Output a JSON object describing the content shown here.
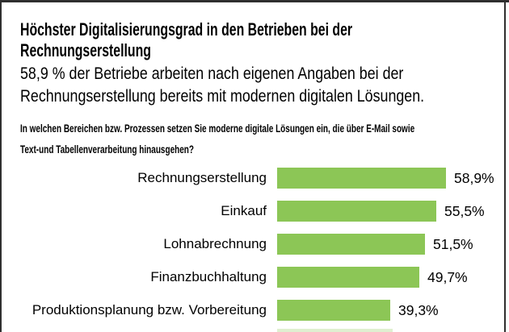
{
  "page": {
    "background": "#ffffff",
    "frame_color": "#2f2f2f"
  },
  "header": {
    "title_lines": [
      "Höchster Digitalisierungsgrad in den Betrieben bei der",
      "Rechnungserstellung"
    ],
    "subtitle_lines": [
      "58,9 % der Betriebe arbeiten nach eigenen Angaben bei der",
      "Rechnungserstellung bereits mit modernen digitalen Lösungen."
    ]
  },
  "question_lines": [
    "In welchen Bereichen bzw. Prozessen setzen Sie moderne digitale Lösungen ein, die über E-Mail sowie",
    "Text-und Tabellenverarbeitung hinausgehen?"
  ],
  "chart_data": {
    "type": "bar",
    "orientation": "horizontal",
    "title": "Höchster Digitalisierungsgrad in den Betrieben bei der Rechnungserstellung",
    "subtitle": "58,9 % der Betriebe arbeiten nach eigenen Angaben bei der Rechnungserstellung bereits mit modernen digitalen Lösungen.",
    "question": "In welchen Bereichen bzw. Prozessen setzen Sie moderne digitale Lösungen ein, die über E-Mail sowie Text-und Tabellenverarbeitung hinausgehen?",
    "categories": [
      "Rechnungserstellung",
      "Einkauf",
      "Lohnabrechnung",
      "Finanzbuchhaltung",
      "Produktionsplanung bzw. Vorbereitung"
    ],
    "values": [
      58.9,
      55.5,
      51.5,
      49.7,
      39.3
    ],
    "value_labels": [
      "58,9%",
      "55,5%",
      "51,5%",
      "49,7%",
      "39,3%"
    ],
    "unit": "%",
    "bar_color": "#8cc656",
    "xlim": [
      0,
      100
    ],
    "grid": false,
    "legend": false,
    "axis_visible": false,
    "cropped_next_bar_visible": true
  }
}
